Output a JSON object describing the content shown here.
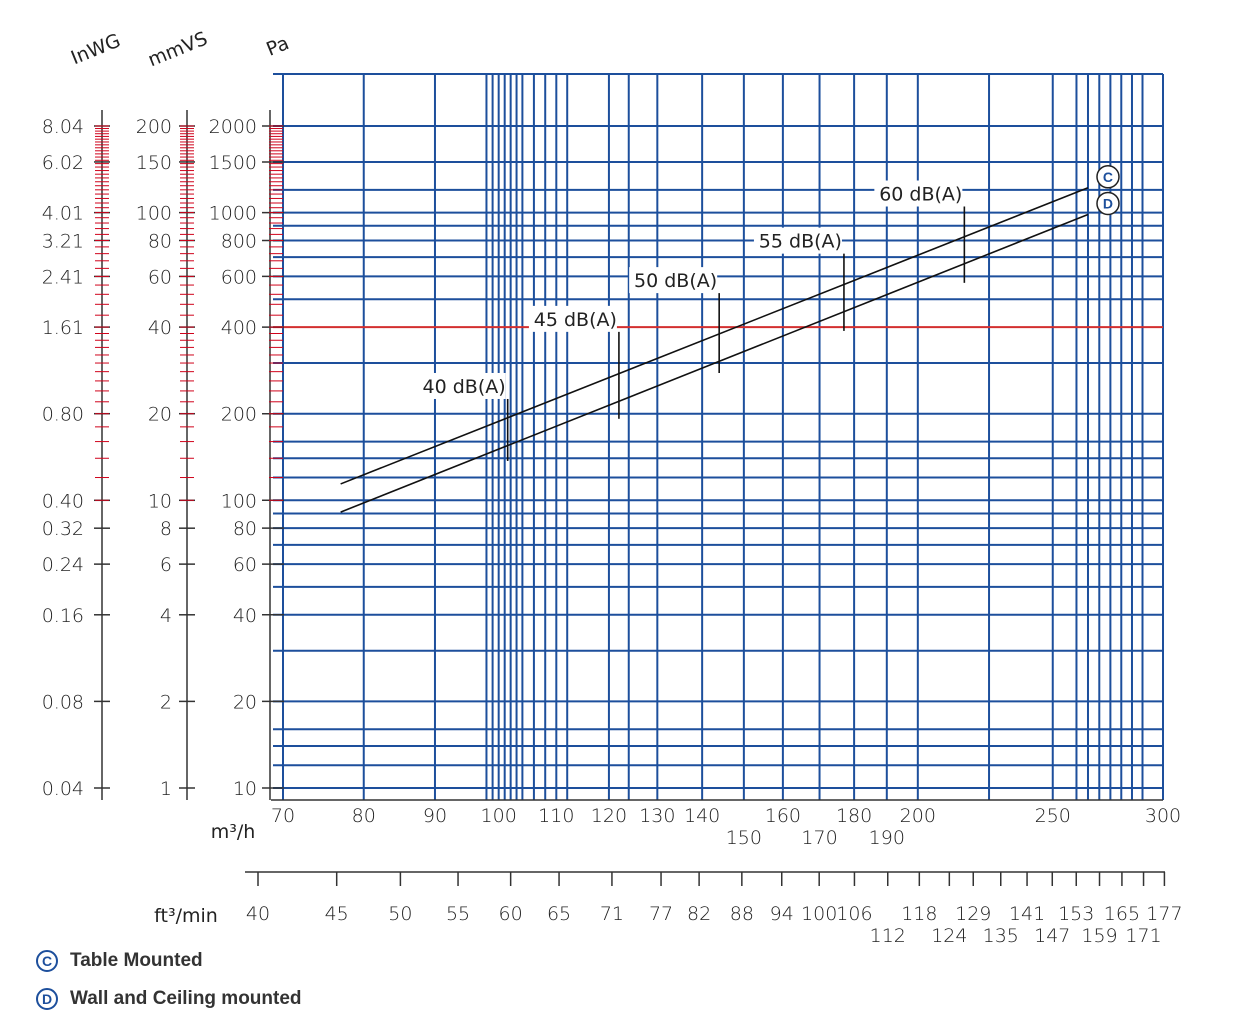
{
  "chart_data": {
    "type": "line",
    "x_axis": {
      "unit": "m³/h",
      "scale": "log",
      "range": [
        70,
        300
      ],
      "ticks": [
        70,
        80,
        90,
        100,
        110,
        120,
        130,
        140,
        150,
        160,
        170,
        180,
        190,
        200,
        250,
        300
      ],
      "extra_gridlines": [
        98,
        99,
        101,
        102,
        103,
        104,
        106,
        108,
        112,
        124,
        225,
        260,
        265,
        270,
        275,
        280,
        285,
        290
      ]
    },
    "y_axis": {
      "unit": "Pa",
      "scale": "log",
      "range": [
        10,
        2000
      ],
      "ticks": [
        10,
        20,
        40,
        60,
        80,
        100,
        200,
        400,
        600,
        800,
        1000,
        1500,
        2000
      ],
      "extra_gridlines": [
        12,
        14,
        16,
        30,
        50,
        70,
        90,
        120,
        140,
        160,
        300,
        500,
        700,
        900,
        1200
      ],
      "highlight_line": 400
    },
    "secondary_axes": [
      {
        "unit": "InWG",
        "ticks": [
          {
            "label": "8.04",
            "pa": 2000
          },
          {
            "label": "6.02",
            "pa": 1500
          },
          {
            "label": "4.01",
            "pa": 1000
          },
          {
            "label": "3.21",
            "pa": 800
          },
          {
            "label": "2.41",
            "pa": 600
          },
          {
            "label": "1.61",
            "pa": 400
          },
          {
            "label": "0.80",
            "pa": 200
          },
          {
            "label": "0.40",
            "pa": 100
          },
          {
            "label": "0.32",
            "pa": 80
          },
          {
            "label": "0.24",
            "pa": 60
          },
          {
            "label": "0.16",
            "pa": 40
          },
          {
            "label": "0.08",
            "pa": 20
          },
          {
            "label": "0.04",
            "pa": 10
          }
        ]
      },
      {
        "unit": "mmVS",
        "ticks": [
          {
            "label": "200",
            "pa": 2000
          },
          {
            "label": "150",
            "pa": 1500
          },
          {
            "label": "100",
            "pa": 1000
          },
          {
            "label": "80",
            "pa": 800
          },
          {
            "label": "60",
            "pa": 600
          },
          {
            "label": "40",
            "pa": 400
          },
          {
            "label": "20",
            "pa": 200
          },
          {
            "label": "10",
            "pa": 100
          },
          {
            "label": "8",
            "pa": 80
          },
          {
            "label": "6",
            "pa": 60
          },
          {
            "label": "4",
            "pa": 40
          },
          {
            "label": "2",
            "pa": 20
          },
          {
            "label": "1",
            "pa": 10
          }
        ]
      }
    ],
    "ft3_axis": {
      "unit": "ft³/min",
      "ticks": [
        {
          "label": "40",
          "m3h": 68
        },
        {
          "label": "45",
          "m3h": 76.5
        },
        {
          "label": "50",
          "m3h": 85
        },
        {
          "label": "55",
          "m3h": 93.5
        },
        {
          "label": "60",
          "m3h": 102
        },
        {
          "label": "65",
          "m3h": 110.5
        },
        {
          "label": "71",
          "m3h": 120.6
        },
        {
          "label": "77",
          "m3h": 130.8
        },
        {
          "label": "82",
          "m3h": 139.3
        },
        {
          "label": "88",
          "m3h": 149.5
        },
        {
          "label": "94",
          "m3h": 159.7
        },
        {
          "label": "100",
          "m3h": 169.9
        },
        {
          "label": "106",
          "m3h": 180.1
        },
        {
          "label": "112",
          "m3h": 190.3
        },
        {
          "label": "118",
          "m3h": 200.5
        },
        {
          "label": "124",
          "m3h": 210.7
        },
        {
          "label": "129",
          "m3h": 219.2
        },
        {
          "label": "135",
          "m3h": 229.4
        },
        {
          "label": "141",
          "m3h": 239.6
        },
        {
          "label": "147",
          "m3h": 249.8
        },
        {
          "label": "153",
          "m3h": 259.9
        },
        {
          "label": "159",
          "m3h": 270.1
        },
        {
          "label": "165",
          "m3h": 280.3
        },
        {
          "label": "171",
          "m3h": 290.5
        },
        {
          "label": "177",
          "m3h": 300.7
        }
      ]
    },
    "series": [
      {
        "name": "C",
        "points": [
          [
            77,
            114
          ],
          [
            265,
            1220
          ]
        ]
      },
      {
        "name": "D",
        "points": [
          [
            77,
            91
          ],
          [
            265,
            985
          ]
        ]
      }
    ],
    "annotations": [
      {
        "label": "40 dB(A)",
        "x": 101.5,
        "y_range": [
          137,
          225
        ]
      },
      {
        "label": "45 dB(A)",
        "x": 122,
        "y_range": [
          192,
          385
        ]
      },
      {
        "label": "50 dB(A)",
        "x": 144,
        "y_range": [
          277,
          525
        ]
      },
      {
        "label": "55 dB(A)",
        "x": 177,
        "y_range": [
          388,
          720
        ]
      },
      {
        "label": "60 dB(A)",
        "x": 216,
        "y_range": [
          570,
          1050
        ]
      }
    ],
    "grid": true
  },
  "legend": [
    {
      "badge": "C",
      "label": "Table Mounted"
    },
    {
      "badge": "D",
      "label": "Wall and Ceiling mounted"
    }
  ],
  "colors": {
    "grid": "#1d4f9c",
    "highlight": "#d32f2f",
    "ruler": "#d0021b",
    "line": "#111111",
    "text": "#222222"
  }
}
